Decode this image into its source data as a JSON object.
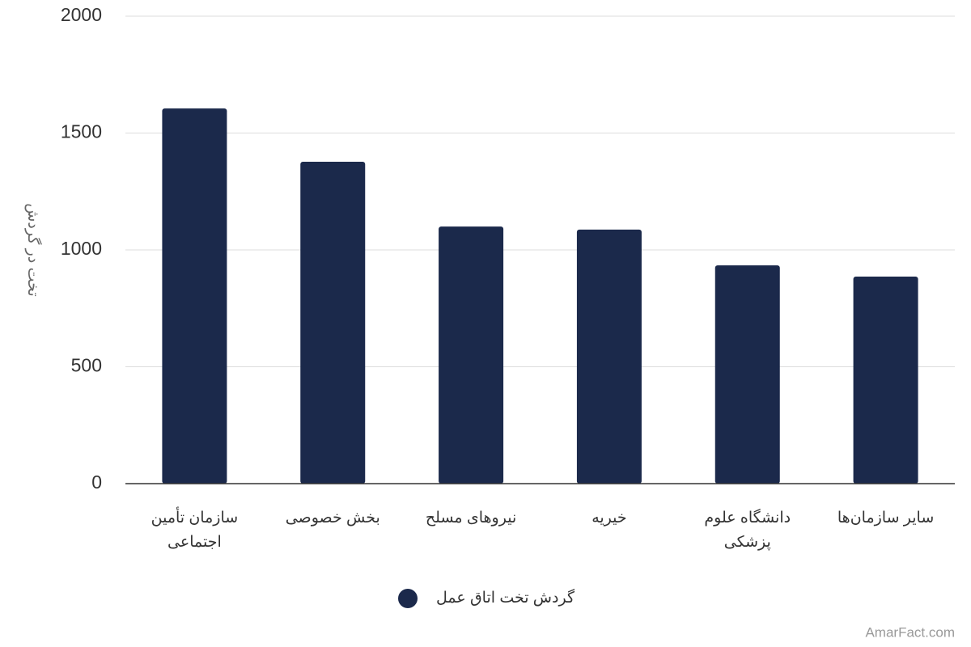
{
  "chart_data": {
    "type": "bar",
    "y_label": "تخت در گردش",
    "categories": [
      "سازمان تأمین اجتماعی",
      "بخش خصوصی",
      "نیروهای مسلح",
      "خیریه",
      "دانشگاه علوم پزشکی",
      "سایر سازمان‌ها"
    ],
    "series": [
      {
        "name": "گردش تخت اتاق عمل",
        "color": "#1b294b",
        "values": [
          1605,
          1377,
          1100,
          1087,
          934,
          886
        ]
      }
    ],
    "ylim": [
      0,
      2000
    ],
    "yticks": [
      0,
      500,
      1000,
      1500,
      2000
    ],
    "grid": true,
    "legend": "bottom",
    "watermark": "AmarFact.com"
  }
}
